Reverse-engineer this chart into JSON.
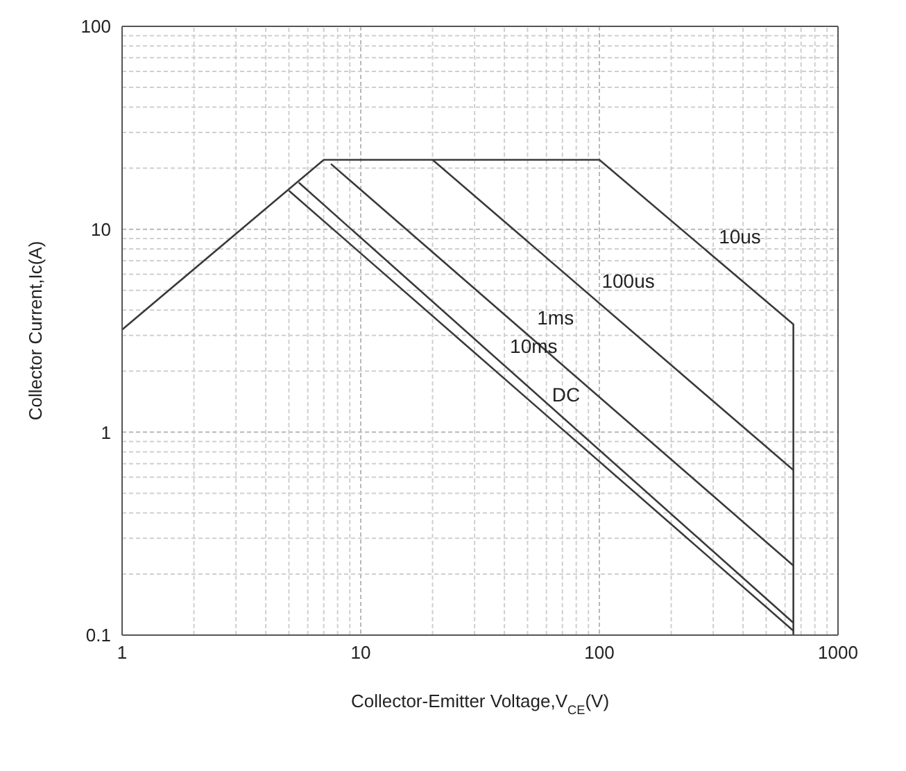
{
  "chart_data": {
    "type": "line",
    "xlabel": "Collector-Emitter Voltage,V$_{CE}$(V)",
    "ylabel": "Collector Current,Ic(A)",
    "log": "xy",
    "grid": true,
    "marker": "none",
    "line_style": "solid",
    "xlim": [
      1,
      1000
    ],
    "xticks": [
      1,
      10,
      100,
      1000
    ],
    "ylim": [
      0.1,
      100
    ],
    "yticks": [
      0.1,
      1,
      10,
      100
    ],
    "series": [
      {
        "color": "#3a3a3a",
        "x": [
          1,
          7,
          100,
          650,
          650
        ],
        "values": [
          3.2,
          22,
          22,
          3.4,
          0.1
        ]
      },
      {
        "color": "#3a3a3a",
        "x": [
          20,
          650
        ],
        "values": [
          22,
          0.65
        ]
      },
      {
        "color": "#3a3a3a",
        "x": [
          7.5,
          650
        ],
        "values": [
          21,
          0.22
        ]
      },
      {
        "color": "#3a3a3a",
        "x": [
          5.5,
          650
        ],
        "values": [
          17,
          0.115
        ]
      },
      {
        "color": "#3a3a3a",
        "x": [
          5,
          650
        ],
        "values": [
          15.5,
          0.105
        ]
      }
    ],
    "annotations": [
      {
        "text": "10us",
        "x": 300,
        "y": 7.3
      },
      {
        "text": "100us",
        "x": 97,
        "y": 4.4
      },
      {
        "text": "1ms",
        "x": 52,
        "y": 2.9
      },
      {
        "text": "10ms",
        "x": 40,
        "y": 2.1
      },
      {
        "text": "DC",
        "x": 60,
        "y": 1.21
      }
    ]
  }
}
